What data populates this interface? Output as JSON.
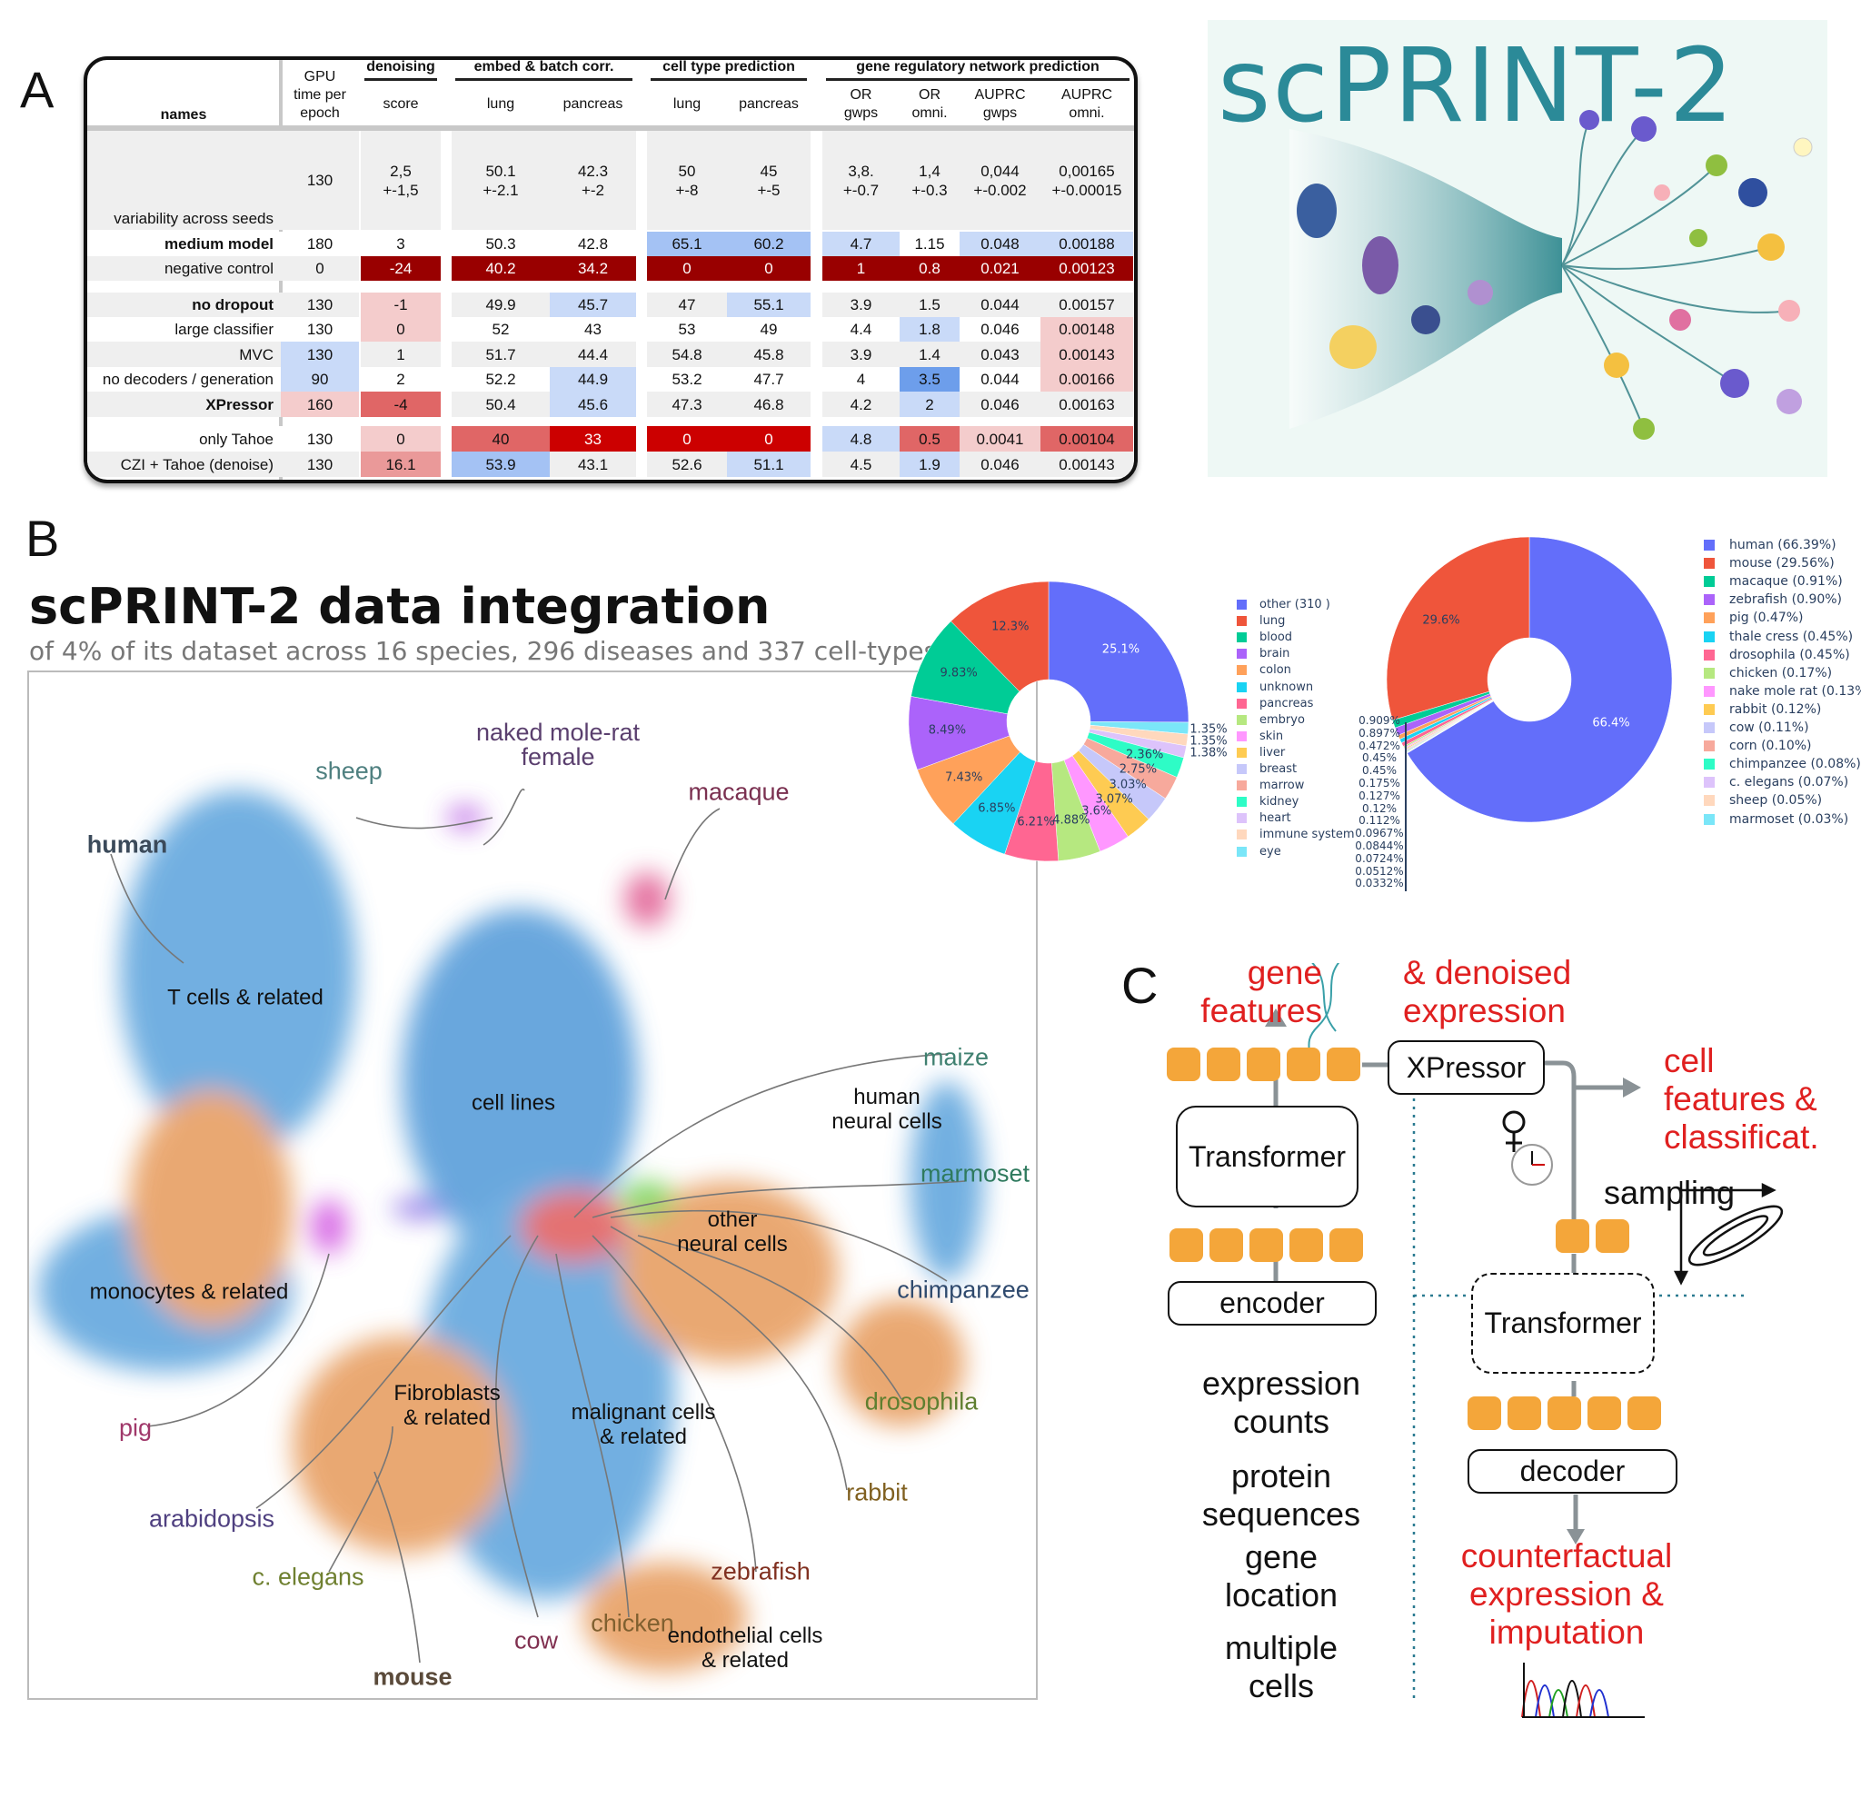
{
  "panels": {
    "a": "A",
    "b": "B",
    "c": "C"
  },
  "table": {
    "groups": [
      "denoising",
      "embed & batch corr.",
      "cell type prediction",
      "gene regulatory network prediction"
    ],
    "headers": [
      "names",
      "GPU\ntime per\nepoch",
      "score",
      "lung",
      "pancreas",
      "lung",
      "pancreas",
      "OR\ngwps",
      "OR\nomni.",
      "AUPRC\ngwps",
      "AUPRC\nomni."
    ],
    "color_scale": {
      "lb": "#c9daf8",
      "mb": "#a4c2f4",
      "db": "#6d9eeb",
      "lr": "#f4cccc",
      "mr": "#ea9999",
      "r": "#e06666",
      "dr": "#cc0000",
      "ddr": "#990000"
    },
    "rows": [
      {
        "name": "variability across seeds",
        "bold": false,
        "values": [
          "130",
          "2,5\n+-1,5",
          "50.1\n+-2.1",
          "42.3\n+-2",
          "50\n+-8",
          "45\n+-5",
          "3,8.\n+-0.7",
          "1,4\n+-0.3",
          "0,044\n+-0.002",
          "0,00165\n+-0.00015"
        ],
        "colors": [
          "",
          "",
          "",
          "",
          "",
          "",
          "",
          "",
          "",
          ""
        ]
      },
      {
        "name": "medium model",
        "bold": true,
        "values": [
          "180",
          "3",
          "50.3",
          "42.8",
          "65.1",
          "60.2",
          "4.7",
          "1.15",
          "0.048",
          "0.00188"
        ],
        "colors": [
          "",
          "",
          "",
          "",
          "mb",
          "mb",
          "lb",
          "",
          "lb",
          "lb"
        ]
      },
      {
        "name": "negative control",
        "bold": false,
        "values": [
          "0",
          "-24",
          "40.2",
          "34.2",
          "0",
          "0",
          "1",
          "0.8",
          "0.021",
          "0.00123"
        ],
        "colors": [
          "",
          "ddr",
          "ddr",
          "ddr",
          "ddr",
          "ddr",
          "ddr",
          "ddr",
          "ddr",
          "ddr"
        ]
      },
      {
        "name": "no dropout",
        "bold": true,
        "values": [
          "130",
          "-1",
          "49.9",
          "45.7",
          "47",
          "55.1",
          "3.9",
          "1.5",
          "0.044",
          "0.00157"
        ],
        "colors": [
          "",
          "lr",
          "",
          "lb",
          "",
          "lb",
          "",
          "",
          "",
          ""
        ]
      },
      {
        "name": "large classifier",
        "bold": false,
        "values": [
          "130",
          "0",
          "52",
          "43",
          "53",
          "49",
          "4.4",
          "1.8",
          "0.046",
          "0.00148"
        ],
        "colors": [
          "",
          "lr",
          "",
          "",
          "",
          "",
          "",
          "lb",
          "",
          "lr"
        ]
      },
      {
        "name": "MVC",
        "bold": false,
        "values": [
          "130",
          "1",
          "51.7",
          "44.4",
          "54.8",
          "45.8",
          "3.9",
          "1.4",
          "0.043",
          "0.00143"
        ],
        "colors": [
          "lb",
          "",
          "",
          "",
          "",
          "",
          "",
          "",
          "",
          "lr"
        ]
      },
      {
        "name": "no decoders / generation",
        "bold": false,
        "values": [
          "90",
          "2",
          "52.2",
          "44.9",
          "53.2",
          "47.7",
          "4",
          "3.5",
          "0.044",
          "0.00166"
        ],
        "colors": [
          "lb",
          "",
          "",
          "lb",
          "",
          "",
          "",
          "db",
          "",
          "lr"
        ]
      },
      {
        "name": "XPressor",
        "bold": true,
        "values": [
          "160",
          "-4",
          "50.4",
          "45.6",
          "47.3",
          "46.8",
          "4.2",
          "2",
          "0.046",
          "0.00163"
        ],
        "colors": [
          "lr",
          "r",
          "",
          "lb",
          "",
          "",
          "",
          "lb",
          "",
          ""
        ]
      },
      {
        "name": "only Tahoe",
        "bold": false,
        "values": [
          "130",
          "0",
          "40",
          "33",
          "0",
          "0",
          "4.8",
          "0.5",
          "0.0041",
          "0.00104"
        ],
        "colors": [
          "",
          "lr",
          "r",
          "dr",
          "dr",
          "dr",
          "lb",
          "r",
          "lr",
          "r"
        ]
      },
      {
        "name": "CZI + Tahoe (denoise)",
        "bold": false,
        "values": [
          "130",
          "16.1",
          "53.9",
          "43.1",
          "52.6",
          "51.1",
          "4.5",
          "1.9",
          "0.046",
          "0.00143"
        ],
        "colors": [
          "",
          "mr",
          "mb",
          "",
          "",
          "lb",
          "",
          "lb",
          "",
          ""
        ]
      }
    ]
  },
  "logo": {
    "title": "scPRINT-2",
    "color": "#2b8a98"
  },
  "integration": {
    "title": "scPRINT-2 data integration",
    "subtitle": "of 4% of its dataset across 16 species, 296 diseases and 337 cell-types",
    "labels": [
      {
        "text": "human",
        "kind": "species-bold",
        "color": "#3b4a5a"
      },
      {
        "text": "sheep",
        "kind": "species",
        "color": "#4f8080"
      },
      {
        "text": "naked mole-rat\nfemale",
        "kind": "species",
        "color": "#5a3f6e"
      },
      {
        "text": "macaque",
        "kind": "species",
        "color": "#7a3050"
      },
      {
        "text": "T cells & related",
        "kind": "cell",
        "color": "#111111"
      },
      {
        "text": "cell lines",
        "kind": "cell",
        "color": "#111111"
      },
      {
        "text": "maize",
        "kind": "species",
        "color": "#3f8070"
      },
      {
        "text": "human\nneural cells",
        "kind": "cell",
        "color": "#111111"
      },
      {
        "text": "marmoset",
        "kind": "species",
        "color": "#2f7a5e"
      },
      {
        "text": "other\nneural cells",
        "kind": "cell",
        "color": "#111111"
      },
      {
        "text": "monocytes & related",
        "kind": "cell",
        "color": "#111111"
      },
      {
        "text": "chimpanzee",
        "kind": "species",
        "color": "#2f4a6e"
      },
      {
        "text": "pig",
        "kind": "species",
        "color": "#a0386a"
      },
      {
        "text": "Fibroblasts\n& related",
        "kind": "cell",
        "color": "#111111"
      },
      {
        "text": "malignant cells\n& related",
        "kind": "cell",
        "color": "#111111"
      },
      {
        "text": "drosophila",
        "kind": "species",
        "color": "#5f7f30"
      },
      {
        "text": "rabbit",
        "kind": "species",
        "color": "#806020"
      },
      {
        "text": "arabidopsis",
        "kind": "species",
        "color": "#4f4080"
      },
      {
        "text": "c. elegans",
        "kind": "species",
        "color": "#6f8030"
      },
      {
        "text": "zebrafish",
        "kind": "species",
        "color": "#803020"
      },
      {
        "text": "chicken",
        "kind": "species",
        "color": "#806030"
      },
      {
        "text": "cow",
        "kind": "species",
        "color": "#803050"
      },
      {
        "text": "endothelial cells\n& related",
        "kind": "cell",
        "color": "#111111"
      },
      {
        "text": "mouse",
        "kind": "species-bold",
        "color": "#5a4a3a"
      }
    ]
  },
  "chart_data": [
    {
      "type": "pie",
      "hole": true,
      "categories": [
        "other (310 )",
        "lung",
        "blood",
        "brain",
        "colon",
        "unknown",
        "pancreas",
        "embryo",
        "skin",
        "liver",
        "breast",
        "marrow",
        "kidney",
        "heart",
        "immune system",
        "eye"
      ],
      "values": [
        25.1,
        12.3,
        9.83,
        8.49,
        7.43,
        6.85,
        6.21,
        4.88,
        3.6,
        3.07,
        3.03,
        2.75,
        2.36,
        1.38,
        1.35,
        1.35
      ],
      "value_labels": [
        "25.1%",
        "12.3%",
        "9.83%",
        "8.49%",
        "7.43%",
        "6.85%",
        "6.21%",
        "4.88%",
        "3.6%",
        "3.07%",
        "3.03%",
        "2.75%",
        "2.36%",
        "1.38%",
        "1.35%",
        "1.35%"
      ],
      "colors": [
        "#636efa",
        "#ef553b",
        "#00cc96",
        "#ab63fa",
        "#ffa15a",
        "#19d3f3",
        "#ff6692",
        "#b6e880",
        "#ff97ff",
        "#fecb52",
        "#c6c8fa",
        "#f7a99c",
        "#2efcc6",
        "#ddc3fb",
        "#ffd8bd",
        "#7ae6f8"
      ],
      "legend": "right"
    },
    {
      "type": "pie",
      "hole": true,
      "categories": [
        "human (66.39%)",
        "mouse (29.56%)",
        "macaque (0.91%)",
        "zebrafish (0.90%)",
        "pig (0.47%)",
        "thale cress (0.45%)",
        "drosophila (0.45%)",
        "chicken (0.17%)",
        "nake mole rat (0.13%)",
        "rabbit (0.12%)",
        "cow (0.11%)",
        "corn (0.10%)",
        "chimpanzee (0.08%)",
        "c. elegans (0.07%)",
        "sheep (0.05%)",
        "marmoset (0.03%)"
      ],
      "values": [
        66.4,
        29.6,
        0.909,
        0.897,
        0.472,
        0.45,
        0.45,
        0.175,
        0.127,
        0.12,
        0.112,
        0.0967,
        0.0844,
        0.0724,
        0.0512,
        0.0332
      ],
      "value_labels": [
        "66.4%",
        "29.6%",
        "0.909%",
        "0.897%",
        "0.472%",
        "0.45%",
        "0.45%",
        "0.175%",
        "0.127%",
        "0.12%",
        "0.112%",
        "0.0967%",
        "0.0844%",
        "0.0724%",
        "0.0512%",
        "0.0332%"
      ],
      "colors": [
        "#636efa",
        "#ef553b",
        "#00cc96",
        "#ab63fa",
        "#ffa15a",
        "#19d3f3",
        "#ff6692",
        "#b6e880",
        "#ff97ff",
        "#fecb52",
        "#c6c8fa",
        "#f7a99c",
        "#2efcc6",
        "#ddc3fb",
        "#ffd8bd",
        "#7ae6f8"
      ],
      "legend": "right"
    }
  ],
  "architecture": {
    "gene_features": "gene\nfeatures",
    "denoised_expression": "& denoised\nexpression",
    "xpressor": "XPressor",
    "transformer": "Transformer",
    "encoder": "encoder",
    "cell_features": "cell\nfeatures &\nclassificat.",
    "sampling": "sampling",
    "transformer2": "Transformer",
    "decoder": "decoder",
    "counterfactual": "counterfactual\nexpression &\nimputation",
    "inputs": [
      "expression\ncounts",
      "protein\nsequences",
      "gene\nlocation",
      "multiple\ncells"
    ],
    "accent_color": "#e02020",
    "token_color": "#f4a63a"
  }
}
